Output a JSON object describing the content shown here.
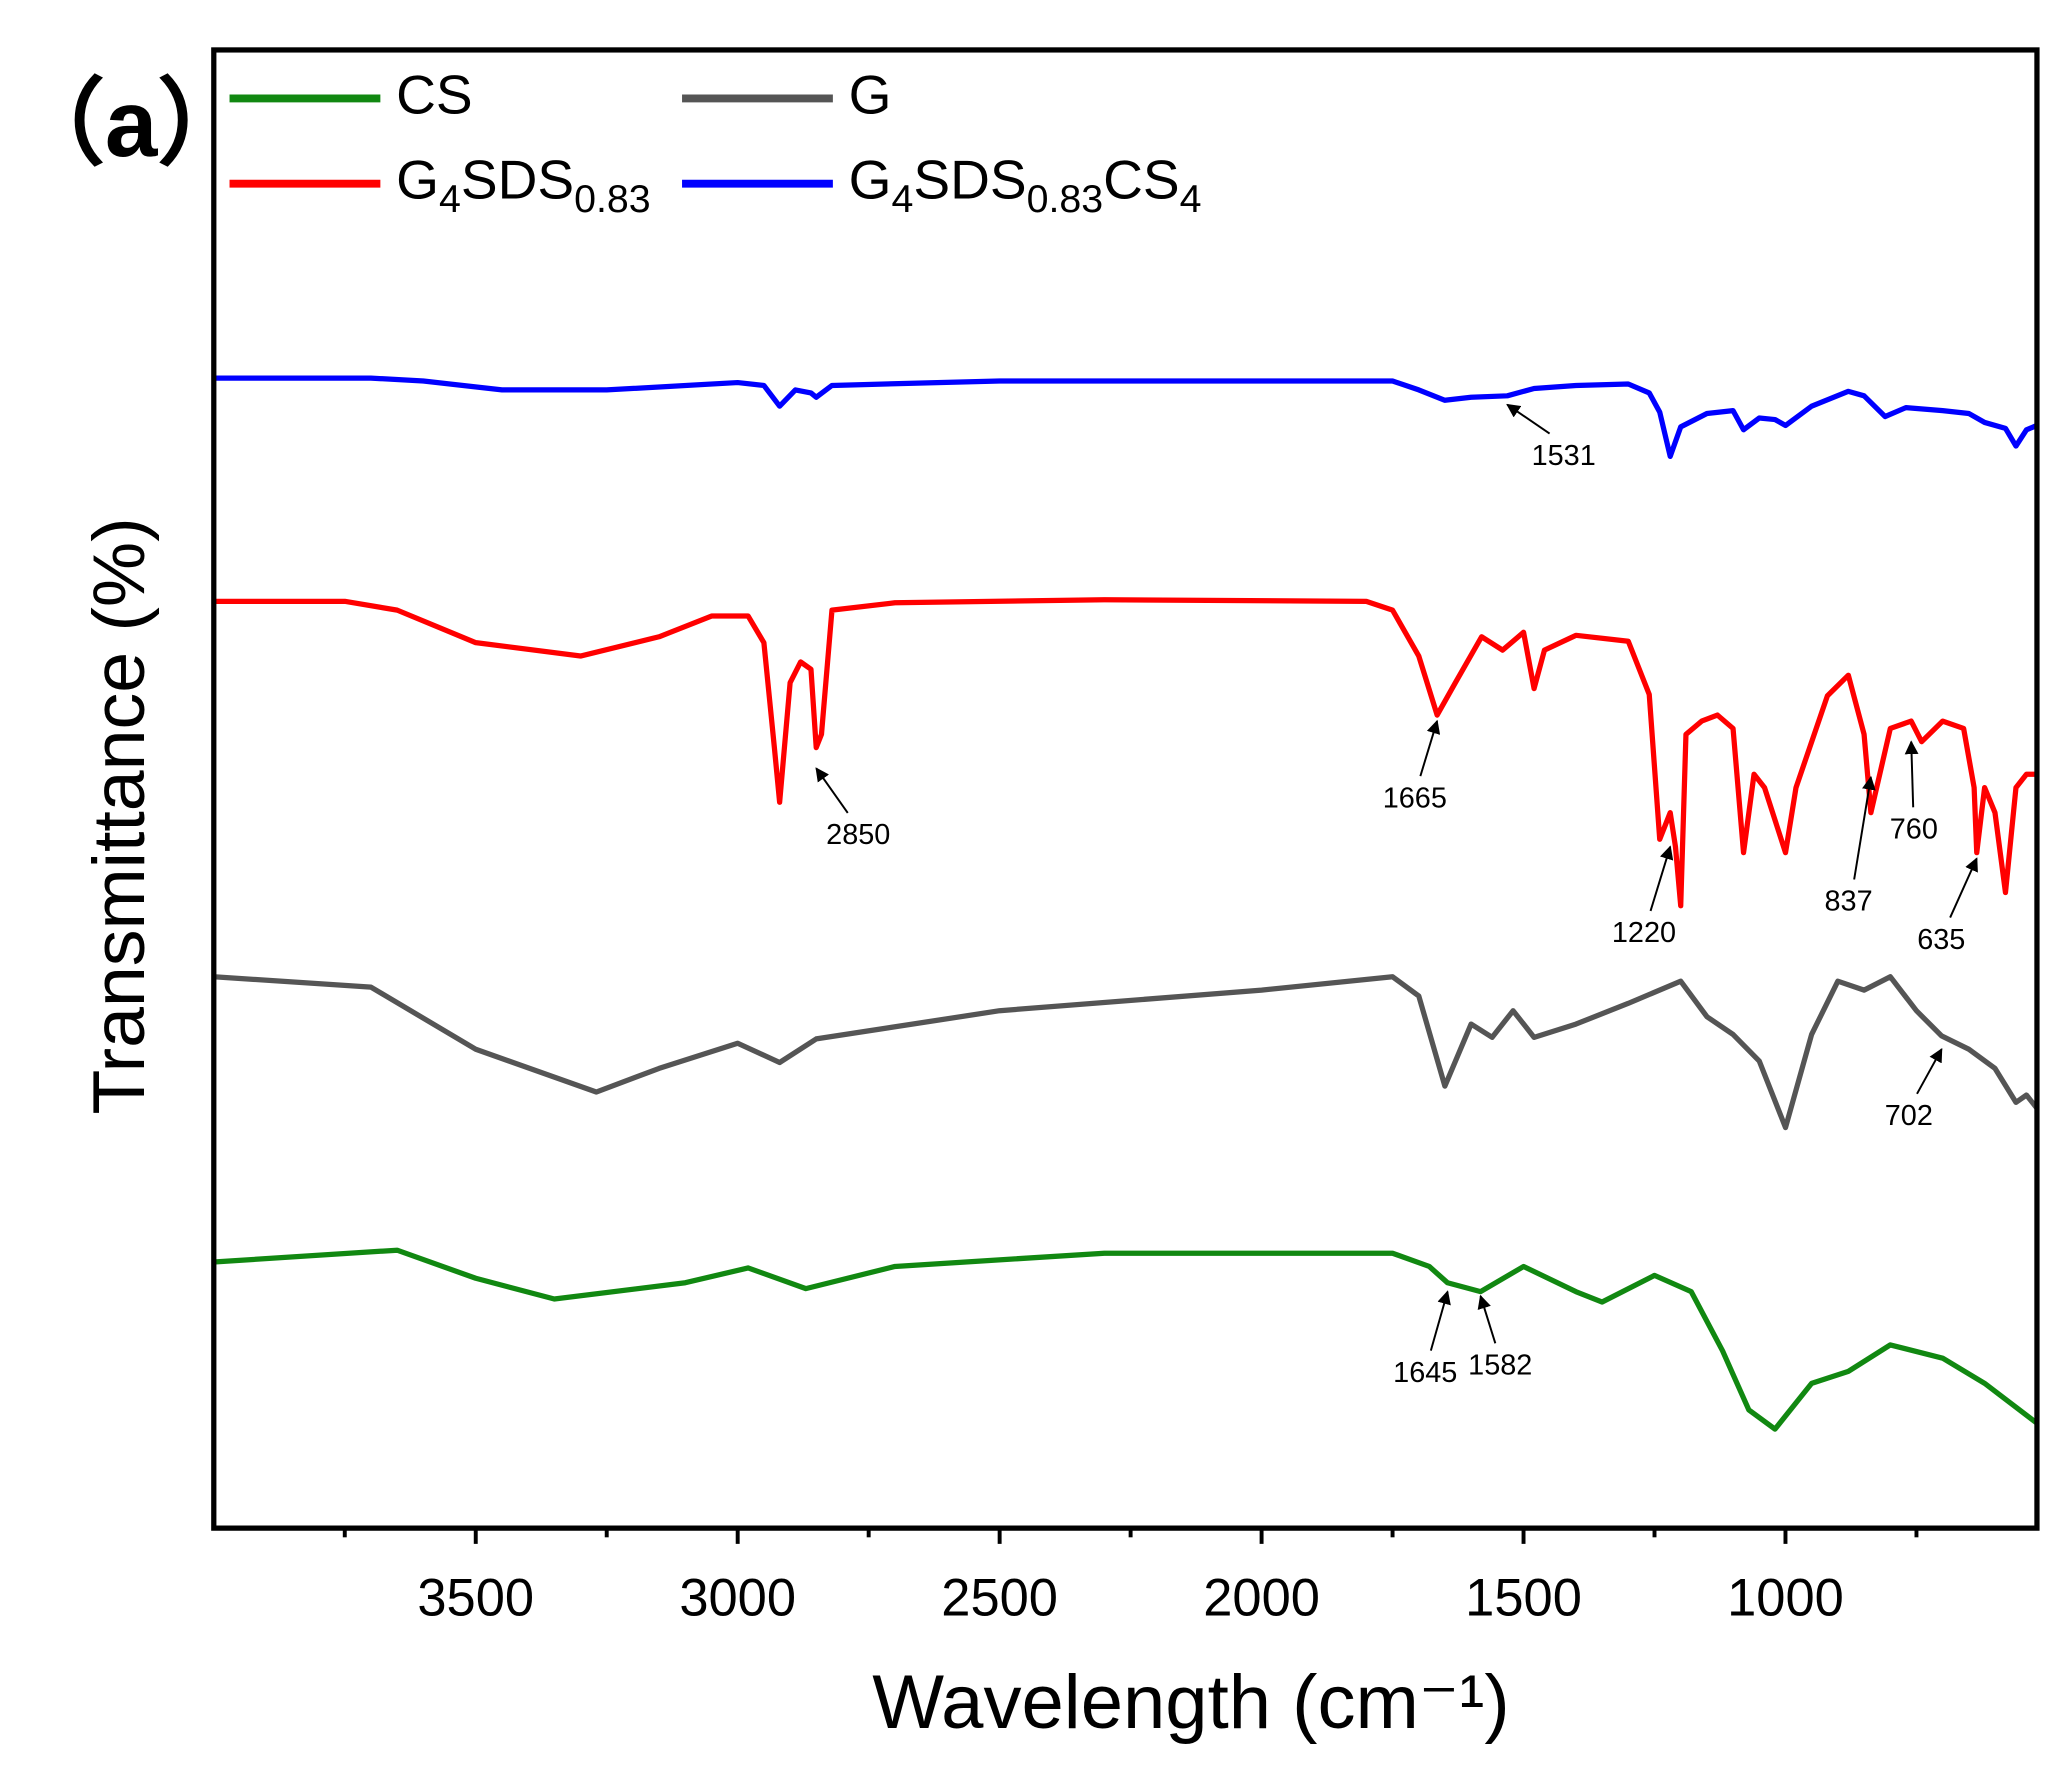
{
  "chart_data": {
    "type": "line",
    "panel_label": "（a）",
    "xlabel": "Wavelength (cm⁻¹)",
    "ylabel": "Transmittance (%)",
    "xlim": [
      4000,
      520
    ],
    "xticks": [
      3500,
      3000,
      2500,
      2000,
      1500,
      1000
    ],
    "xminor_ticks": [
      3750,
      3250,
      2750,
      2250,
      1750,
      1250,
      750
    ],
    "ylim": [
      0,
      100
    ],
    "series": [
      {
        "name": "CS",
        "color": "#118811",
        "x": [
          4000,
          3650,
          3500,
          3350,
          3100,
          2980,
          2870,
          2700,
          2300,
          1750,
          1680,
          1645,
          1582,
          1500,
          1400,
          1350,
          1250,
          1180,
          1120,
          1070,
          1020,
          950,
          880,
          800,
          700,
          620,
          520
        ],
        "values": [
          18.0,
          18.8,
          16.9,
          15.5,
          16.6,
          17.6,
          16.2,
          17.7,
          18.6,
          18.6,
          17.7,
          16.6,
          16.0,
          17.7,
          16.0,
          15.3,
          17.1,
          16.0,
          12.0,
          8.0,
          6.7,
          9.8,
          10.6,
          12.4,
          11.5,
          9.8,
          7.1
        ]
      },
      {
        "name": "G",
        "color": "#555555",
        "x": [
          4000,
          3700,
          3500,
          3270,
          3150,
          3000,
          2920,
          2850,
          2500,
          2000,
          1750,
          1700,
          1650,
          1600,
          1560,
          1520,
          1480,
          1400,
          1300,
          1200,
          1150,
          1100,
          1050,
          1000,
          950,
          900,
          850,
          800,
          750,
          702,
          650,
          600,
          560,
          540,
          520
        ],
        "values": [
          37.3,
          36.6,
          32.4,
          29.5,
          31.1,
          32.8,
          31.5,
          33.1,
          35.0,
          36.4,
          37.3,
          36.0,
          29.9,
          34.1,
          33.2,
          35.0,
          33.2,
          34.1,
          35.5,
          37.0,
          34.6,
          33.4,
          31.6,
          27.1,
          33.4,
          37.0,
          36.4,
          37.3,
          35.0,
          33.3,
          32.4,
          31.1,
          28.8,
          29.3,
          28.4
        ]
      },
      {
        "name": "G4SDS0.83",
        "color": "#ff0000",
        "x": [
          4000,
          3750,
          3650,
          3500,
          3300,
          3150,
          3050,
          2980,
          2950,
          2930,
          2920,
          2900,
          2880,
          2860,
          2850,
          2840,
          2820,
          2700,
          2300,
          1800,
          1750,
          1700,
          1665,
          1630,
          1580,
          1540,
          1500,
          1480,
          1460,
          1400,
          1300,
          1260,
          1240,
          1220,
          1210,
          1200,
          1190,
          1160,
          1130,
          1100,
          1080,
          1060,
          1040,
          1000,
          980,
          920,
          880,
          850,
          837,
          800,
          760,
          740,
          700,
          660,
          640,
          635,
          620,
          600,
          580,
          560,
          540,
          520
        ],
        "values": [
          62.7,
          62.7,
          62.1,
          59.9,
          59.0,
          60.3,
          61.7,
          61.7,
          59.9,
          52.8,
          49.1,
          57.2,
          58.6,
          58.1,
          52.8,
          53.7,
          62.1,
          62.6,
          62.8,
          62.7,
          62.1,
          59.0,
          55.0,
          57.2,
          60.3,
          59.4,
          60.6,
          56.8,
          59.4,
          60.4,
          60.0,
          56.4,
          46.6,
          48.4,
          46.1,
          42.1,
          53.7,
          54.6,
          55.0,
          54.1,
          45.7,
          51.0,
          50.1,
          45.7,
          50.1,
          56.3,
          57.7,
          53.7,
          48.4,
          54.1,
          54.6,
          53.2,
          54.6,
          54.1,
          50.1,
          45.7,
          50.1,
          48.4,
          43.0,
          50.1,
          51.0,
          51.0
        ]
      },
      {
        "name": "G4SDS0.83CS4",
        "color": "#0000ff",
        "x": [
          4000,
          3700,
          3600,
          3450,
          3250,
          3000,
          2950,
          2920,
          2890,
          2860,
          2850,
          2820,
          2500,
          2000,
          1750,
          1700,
          1650,
          1600,
          1531,
          1480,
          1400,
          1300,
          1260,
          1240,
          1220,
          1200,
          1150,
          1100,
          1080,
          1050,
          1020,
          1000,
          950,
          880,
          850,
          810,
          770,
          700,
          650,
          620,
          580,
          560,
          540,
          520
        ],
        "values": [
          77.8,
          77.8,
          77.6,
          77.0,
          77.0,
          77.5,
          77.3,
          75.9,
          77.0,
          76.8,
          76.5,
          77.3,
          77.6,
          77.6,
          77.6,
          77.0,
          76.3,
          76.5,
          76.6,
          77.1,
          77.3,
          77.4,
          76.8,
          75.5,
          72.5,
          74.5,
          75.4,
          75.6,
          74.3,
          75.1,
          75.0,
          74.6,
          75.9,
          76.9,
          76.6,
          75.2,
          75.8,
          75.6,
          75.4,
          74.8,
          74.4,
          73.2,
          74.3,
          74.6
        ]
      }
    ],
    "annotations": [
      {
        "x": 1531,
        "y": 76.0
      },
      {
        "x": 2850,
        "y": 51.4
      },
      {
        "x": 1665,
        "y": 54.6
      },
      {
        "x": 1220,
        "y": 46.1
      },
      {
        "x": 837,
        "y": 50.8
      },
      {
        "x": 760,
        "y": 53.2
      },
      {
        "x": 635,
        "y": 45.3
      },
      {
        "x": 702,
        "y": 32.4
      },
      {
        "x": 1645,
        "y": 16.0
      },
      {
        "x": 1582,
        "y": 15.7
      }
    ]
  }
}
